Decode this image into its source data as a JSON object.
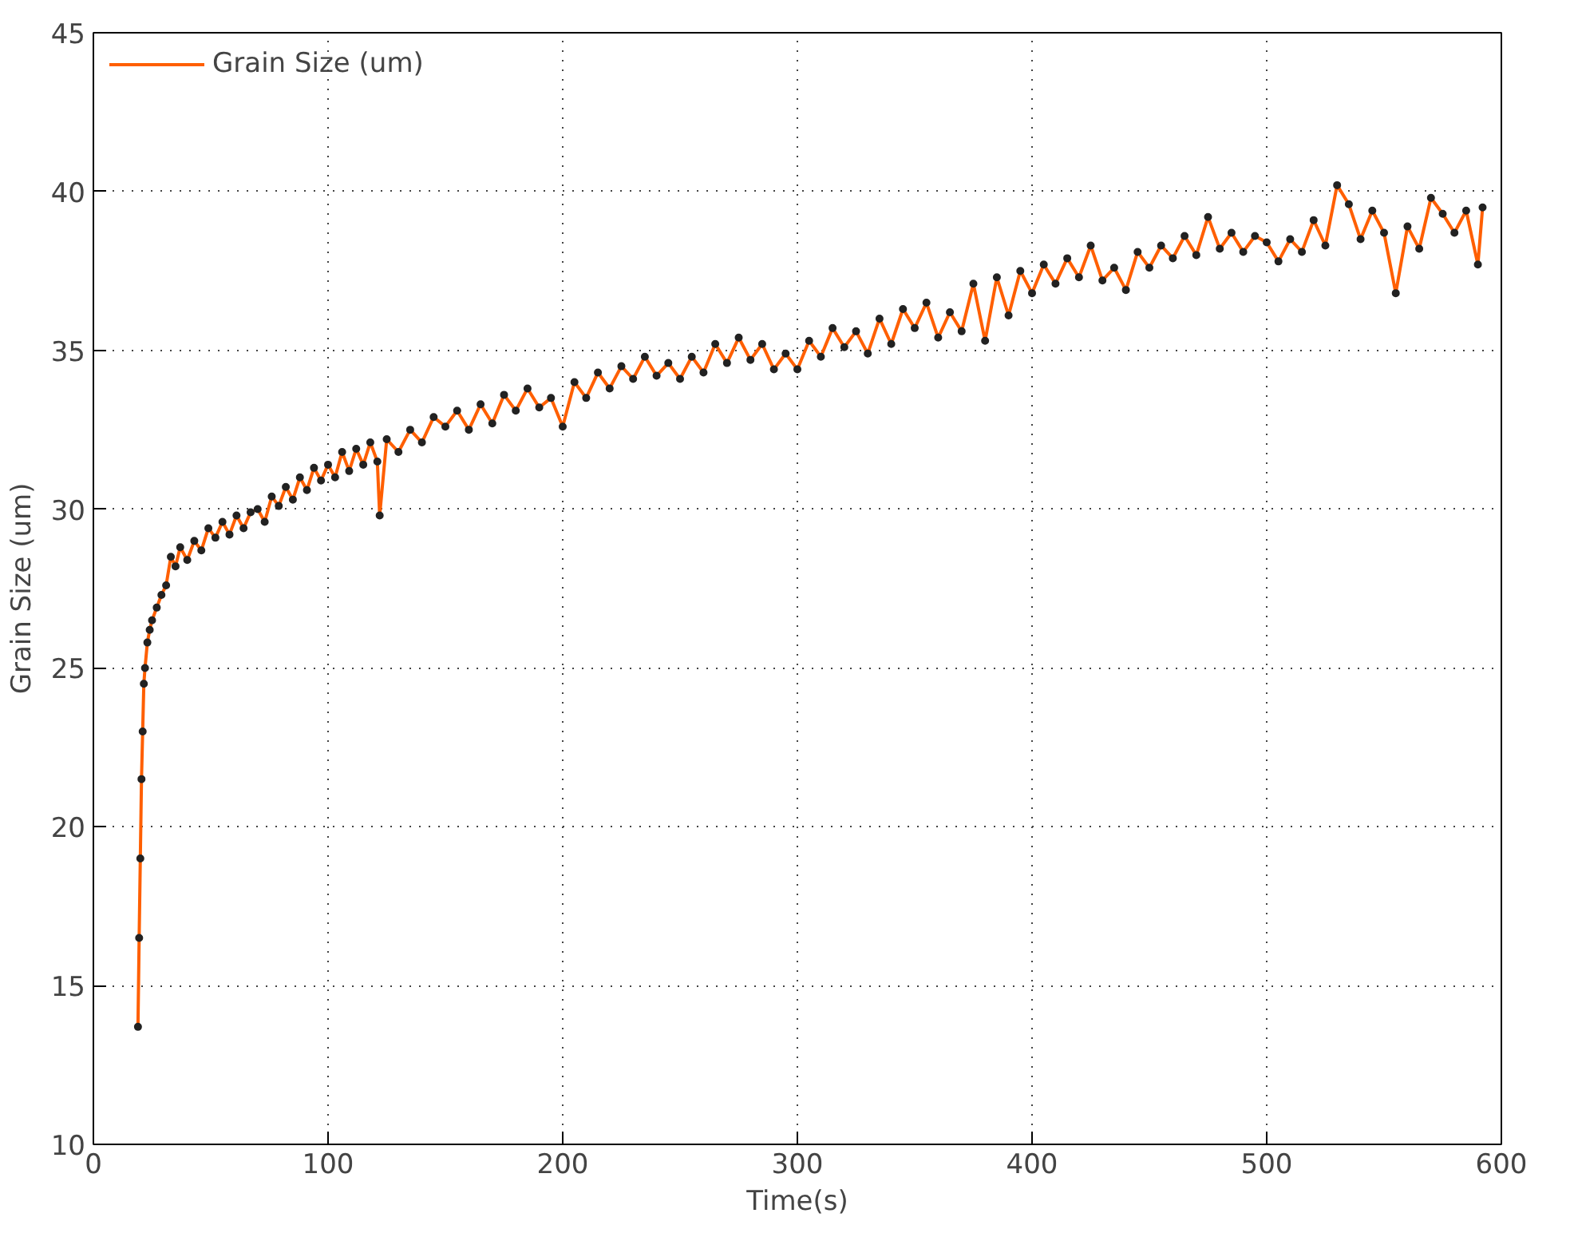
{
  "chart_data": {
    "type": "line",
    "xlabel": "Time(s)",
    "ylabel": "Grain Size (um)",
    "xlim": [
      0,
      600
    ],
    "ylim": [
      10,
      45
    ],
    "xticks": [
      0,
      100,
      200,
      300,
      400,
      500,
      600
    ],
    "yticks": [
      10,
      15,
      20,
      25,
      30,
      35,
      40,
      45
    ],
    "grid": true,
    "legend": "top left",
    "marker": "circle",
    "line_style": "solid",
    "series": [
      {
        "name": "Grain Size (um)",
        "color": "#ff5f00",
        "x": [
          19,
          19.5,
          20,
          20.5,
          21,
          21.5,
          22,
          23,
          24,
          25,
          27,
          29,
          31,
          33,
          35,
          37,
          40,
          43,
          46,
          49,
          52,
          55,
          58,
          61,
          64,
          67,
          70,
          73,
          76,
          79,
          82,
          85,
          88,
          91,
          94,
          97,
          100,
          103,
          106,
          109,
          112,
          115,
          118,
          121,
          122,
          125,
          130,
          135,
          140,
          145,
          150,
          155,
          160,
          165,
          170,
          175,
          180,
          185,
          190,
          195,
          200,
          205,
          210,
          215,
          220,
          225,
          230,
          235,
          240,
          245,
          250,
          255,
          260,
          265,
          270,
          275,
          280,
          285,
          290,
          295,
          300,
          305,
          310,
          315,
          320,
          325,
          330,
          335,
          340,
          345,
          350,
          355,
          360,
          365,
          370,
          375,
          380,
          385,
          390,
          395,
          400,
          405,
          410,
          415,
          420,
          425,
          430,
          435,
          440,
          445,
          450,
          455,
          460,
          465,
          470,
          475,
          480,
          485,
          490,
          495,
          500,
          505,
          510,
          515,
          520,
          525,
          530,
          535,
          540,
          545,
          550,
          555,
          560,
          565,
          570,
          575,
          580,
          585,
          590,
          592
        ],
        "values": [
          13.7,
          16.5,
          19,
          21.5,
          23,
          24.5,
          25,
          25.8,
          26.2,
          26.5,
          26.9,
          27.3,
          27.6,
          28.5,
          28.2,
          28.8,
          28.4,
          29,
          28.7,
          29.4,
          29.1,
          29.6,
          29.2,
          29.8,
          29.4,
          29.9,
          30,
          29.6,
          30.4,
          30.1,
          30.7,
          30.3,
          31,
          30.6,
          31.3,
          30.9,
          31.4,
          31,
          31.8,
          31.2,
          31.9,
          31.4,
          32.1,
          31.5,
          29.8,
          32.2,
          31.8,
          32.5,
          32.1,
          32.9,
          32.6,
          33.1,
          32.5,
          33.3,
          32.7,
          33.6,
          33.1,
          33.8,
          33.2,
          33.5,
          32.6,
          34,
          33.5,
          34.3,
          33.8,
          34.5,
          34.1,
          34.8,
          34.2,
          34.6,
          34.1,
          34.8,
          34.3,
          35.2,
          34.6,
          35.4,
          34.7,
          35.2,
          34.4,
          34.9,
          34.4,
          35.3,
          34.8,
          35.7,
          35.1,
          35.6,
          34.9,
          36,
          35.2,
          36.3,
          35.7,
          36.5,
          35.4,
          36.2,
          35.6,
          37.1,
          35.3,
          37.3,
          36.1,
          37.5,
          36.8,
          37.7,
          37.1,
          37.9,
          37.3,
          38.3,
          37.2,
          37.6,
          36.9,
          38.1,
          37.6,
          38.3,
          37.9,
          38.6,
          38,
          39.2,
          38.2,
          38.7,
          38.1,
          38.6,
          38.4,
          37.8,
          38.5,
          38.1,
          39.1,
          38.3,
          40.2,
          39.6,
          38.5,
          39.4,
          38.7,
          36.8,
          38.9,
          38.2,
          39.8,
          39.3,
          38.7,
          39.4,
          37.7,
          39.5
        ]
      }
    ]
  }
}
